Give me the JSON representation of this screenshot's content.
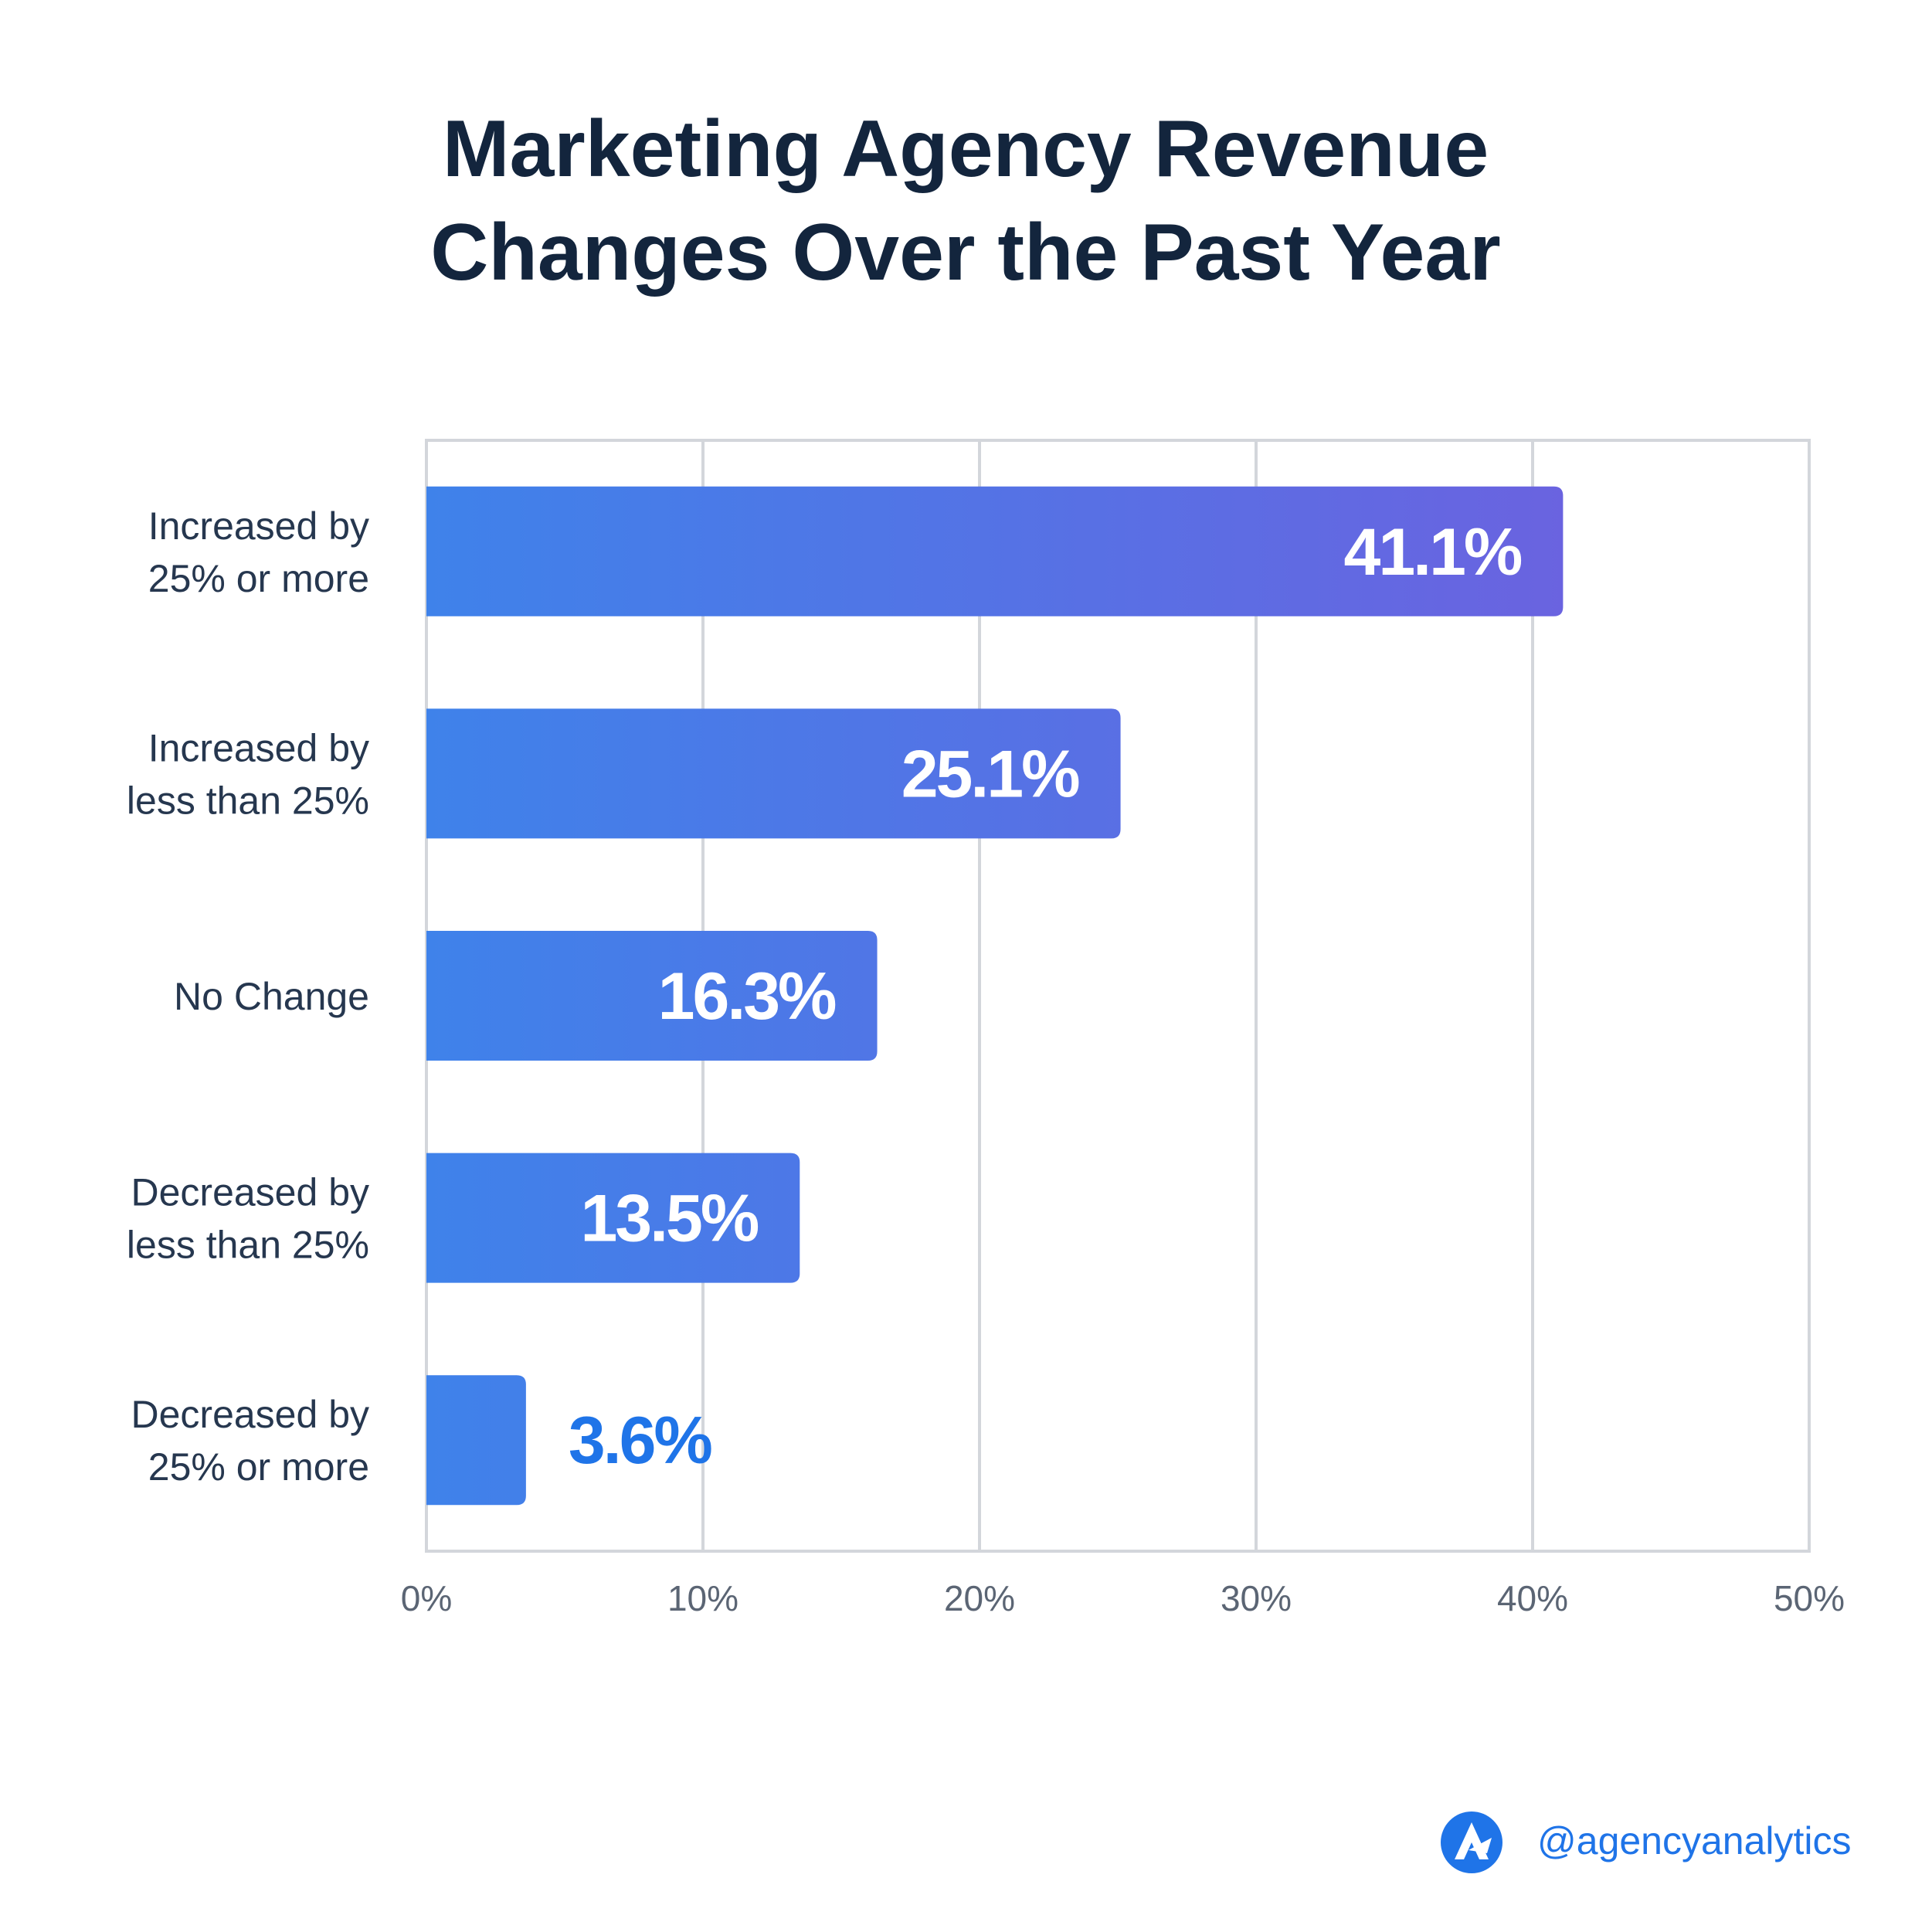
{
  "chart_data": {
    "type": "bar",
    "orientation": "horizontal",
    "title_lines": [
      "Marketing Agency Revenue",
      "Changes Over the Past Year"
    ],
    "categories": [
      [
        "Increased by",
        "25% or more"
      ],
      [
        "Increased by",
        "less than 25%"
      ],
      [
        "No Change"
      ],
      [
        "Decreased by",
        "less than 25%"
      ],
      [
        "Decreased by",
        "25% or more"
      ]
    ],
    "values": [
      41.1,
      25.1,
      16.3,
      13.5,
      3.6
    ],
    "value_labels": [
      "41.1%",
      "25.1%",
      "16.3%",
      "13.5%",
      "3.6%"
    ],
    "xlim": [
      0,
      50
    ],
    "x_ticks": [
      0,
      10,
      20,
      30,
      40,
      50
    ],
    "x_tick_labels": [
      "0%",
      "10%",
      "20%",
      "30%",
      "40%",
      "50%"
    ],
    "grid": true,
    "colors": {
      "bar_start": "#3f82ea",
      "bar_end": "#6a63e0",
      "value_inside": "#ffffff",
      "value_outside": "#1f74e8",
      "grid": "#d3d6db"
    }
  },
  "brand": {
    "handle": "@agencyanalytics",
    "logo_icon": "agencyanalytics-logo-icon"
  }
}
